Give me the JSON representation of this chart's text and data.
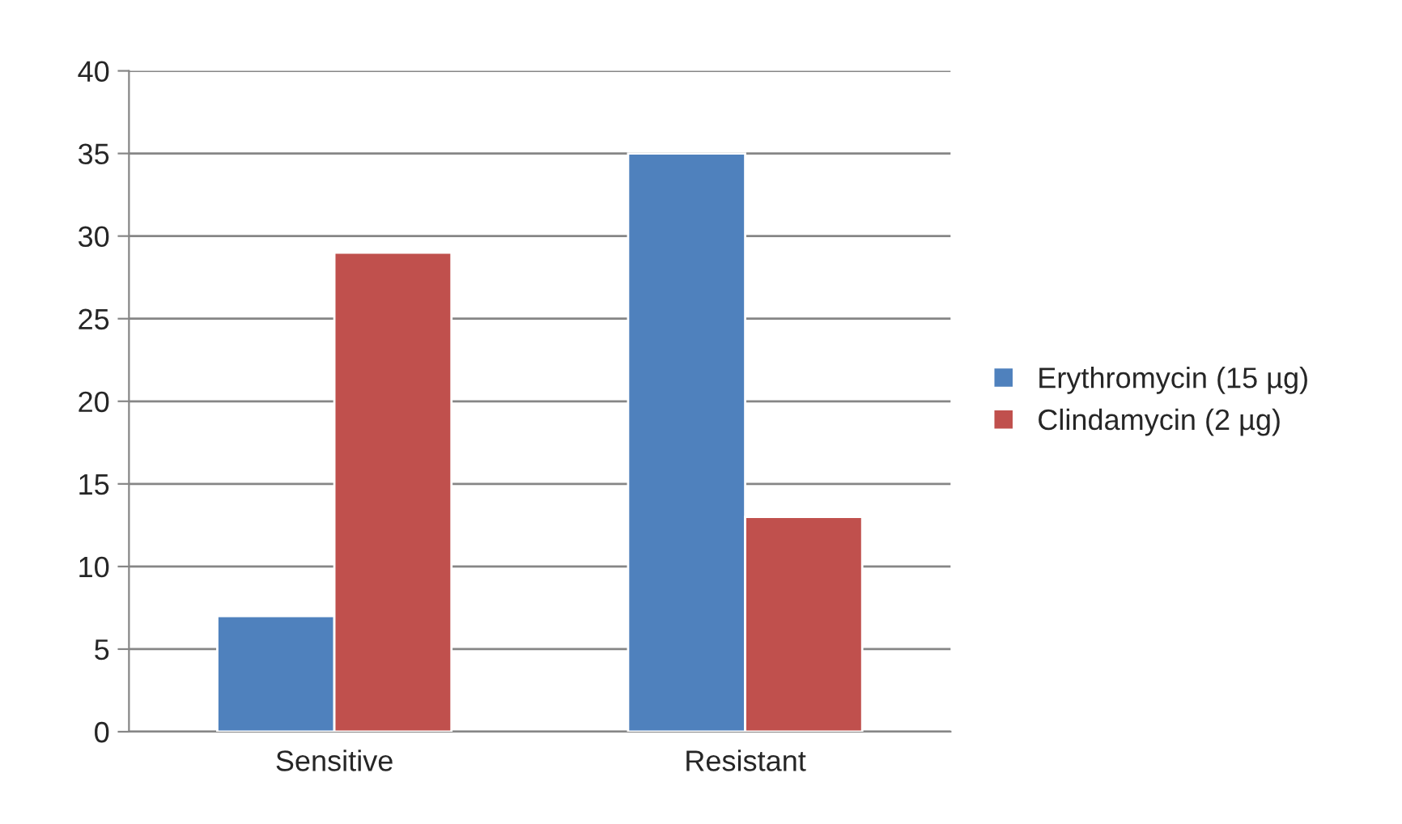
{
  "chart_data": {
    "type": "bar",
    "categories": [
      "Sensitive",
      "Resistant"
    ],
    "series": [
      {
        "name": "Erythromycin (15 µg)",
        "color": "#4f81bd",
        "values": [
          7,
          35
        ]
      },
      {
        "name": "Clindamycin (2 µg)",
        "color": "#c0504d",
        "values": [
          29,
          13
        ]
      }
    ],
    "ylim": [
      0,
      40
    ],
    "yticks": [
      0,
      5,
      10,
      15,
      20,
      25,
      30,
      35,
      40
    ],
    "grid": "y",
    "legend": "right"
  }
}
